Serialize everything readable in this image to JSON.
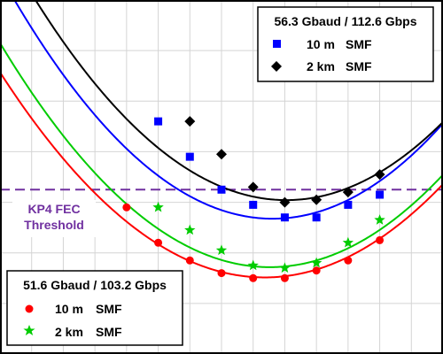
{
  "chart_data": {
    "type": "scatter",
    "title": "",
    "xlabel": "",
    "ylabel": "",
    "grid": true,
    "x_gridlines": [
      1,
      2,
      3,
      4,
      5,
      6,
      7,
      8,
      9,
      10,
      11,
      12,
      13
    ],
    "y_gridlines": [
      1,
      2,
      3,
      4,
      5,
      6
    ],
    "xlim": [
      0,
      14
    ],
    "ylim": [
      0,
      7
    ],
    "threshold": {
      "label_line1": "KP4 FEC",
      "label_line2": "Threshold",
      "y": 3.25,
      "color": "#7030a0"
    },
    "legends": [
      {
        "position": "top-right",
        "title": "56.3 Gbaud / 112.6 Gbps",
        "entries": [
          {
            "series_index": 0,
            "label_a": "10 m",
            "label_b": "SMF"
          },
          {
            "series_index": 1,
            "label_a": "2 km",
            "label_b": "SMF"
          }
        ]
      },
      {
        "position": "bottom-left",
        "title": "51.6 Gbaud / 103.2 Gbps",
        "entries": [
          {
            "series_index": 2,
            "label_a": "10 m",
            "label_b": "SMF"
          },
          {
            "series_index": 3,
            "label_a": "2 km",
            "label_b": "SMF"
          }
        ]
      }
    ],
    "series": [
      {
        "name": "56.3 Gbaud / 112.6 Gbps 10 m SMF",
        "color": "#0000ff",
        "marker": "square",
        "x": [
          5,
          6,
          7,
          8,
          9,
          10,
          11,
          12
        ],
        "y": [
          4.6,
          3.9,
          3.25,
          2.95,
          2.7,
          2.7,
          2.95,
          3.15
        ],
        "fit": [
          0.065,
          -1.12,
          7.5
        ]
      },
      {
        "name": "56.3 Gbaud / 112.6 Gbps 2 km SMF",
        "color": "#000000",
        "marker": "diamond",
        "x": [
          6,
          7,
          8,
          9,
          10,
          11,
          12
        ],
        "y": [
          4.6,
          3.95,
          3.3,
          3.0,
          3.05,
          3.2,
          3.55
        ],
        "fit": [
          0.063,
          -1.14,
          8.2
        ]
      },
      {
        "name": "51.6 Gbaud / 103.2 Gbps 10 m SMF",
        "color": "#ff0000",
        "marker": "circle",
        "x": [
          4,
          5,
          6,
          7,
          8,
          9,
          10,
          11,
          12
        ],
        "y": [
          2.9,
          2.2,
          1.85,
          1.6,
          1.5,
          1.5,
          1.65,
          1.85,
          2.25
        ],
        "fit": [
          0.058,
          -0.97,
          5.57
        ]
      },
      {
        "name": "51.6 Gbaud / 103.2 Gbps 2 km SMF",
        "color": "#00cc00",
        "marker": "star",
        "x": [
          5,
          6,
          7,
          8,
          9,
          10,
          11,
          12
        ],
        "y": [
          2.9,
          2.45,
          2.05,
          1.75,
          1.7,
          1.8,
          2.2,
          2.65
        ],
        "fit": [
          0.061,
          -1.04,
          6.15
        ]
      }
    ]
  }
}
